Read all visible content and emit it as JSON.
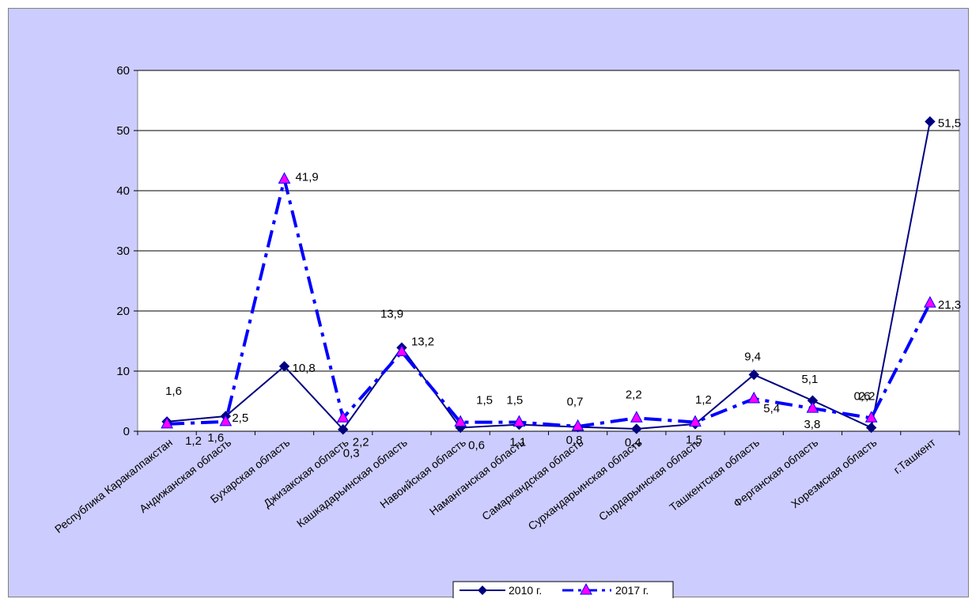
{
  "chart_data": {
    "type": "line",
    "categories": [
      "Республика Каракалпакстан",
      "Андижанская область",
      "Бухарская область",
      "Джизакская область",
      "Кашкадарьинская область",
      "Навоийская область",
      "Наманганская область",
      "Самаркандская область",
      "Сурхандарьинская область",
      "Сырдарьинская область",
      "Ташкентская область",
      "Ферганская область",
      "Хорезмская область",
      "г.Ташкент"
    ],
    "series": [
      {
        "name": "2010 г.",
        "values": [
          1.6,
          2.5,
          10.8,
          0.3,
          13.9,
          0.6,
          1.1,
          0.7,
          0.4,
          1.2,
          9.4,
          5.1,
          0.6,
          51.5
        ],
        "labels": [
          "1,6",
          "2,5",
          "10,8",
          "0,3",
          "13,9",
          "0,6",
          "1,1",
          "0,7",
          "0,4",
          "1,2",
          "9,4",
          "5,1",
          "0,6",
          "51,5"
        ],
        "color": "#000080",
        "marker": "diamond",
        "line_style": "solid"
      },
      {
        "name": "2017 г.",
        "values": [
          1.2,
          1.6,
          41.9,
          2.2,
          13.2,
          1.5,
          1.5,
          0.8,
          2.2,
          1.5,
          5.4,
          3.8,
          2.2,
          21.3
        ],
        "labels": [
          "1,2",
          "1,6",
          "41,9",
          "2,2",
          "13,2",
          "1,5",
          "1,5",
          "0,8",
          "2,2",
          "1,5",
          "5,4",
          "3,8",
          "2,2",
          "21,3"
        ],
        "color": "#0000ff",
        "marker": "triangle",
        "marker_color": "#ff00ff",
        "line_style": "dash-dot"
      }
    ],
    "ylim": [
      0,
      60
    ],
    "yticks": [
      "0",
      "10",
      "20",
      "30",
      "40",
      "50",
      "60"
    ],
    "ytick_values": [
      0,
      10,
      20,
      30,
      40,
      50,
      60
    ],
    "grid": "horizontal",
    "legend_position": "bottom",
    "title": "",
    "xlabel": "",
    "ylabel": "",
    "colors": {
      "background": "#ccccff",
      "plot_area": "#ffffff"
    }
  }
}
